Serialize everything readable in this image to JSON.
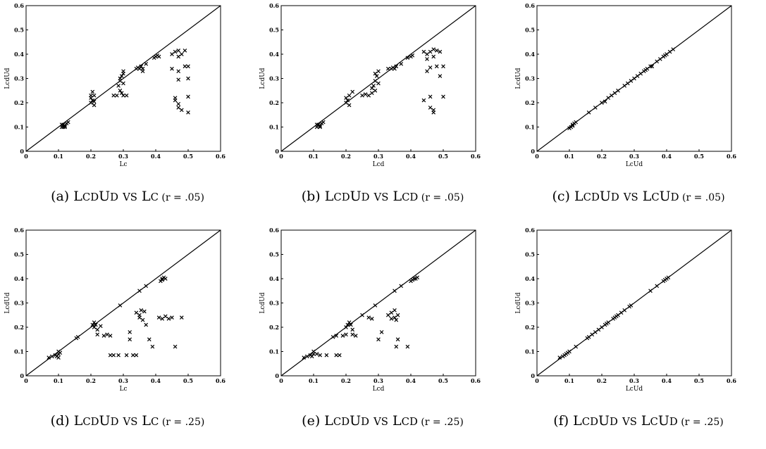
{
  "chart_data": [
    {
      "type": "scatter",
      "caption": {
        "label": "(a)",
        "text": "LcdUd vs Lc",
        "r": "(r = .05)"
      },
      "xlabel": "Lc",
      "ylabel": "LcdUd",
      "xlim": [
        0,
        0.6
      ],
      "ylim": [
        0,
        0.6
      ],
      "ticks": [
        "0",
        "0.1",
        "0.2",
        "0.3",
        "0.4",
        "0.5",
        "0.6"
      ],
      "diagonal": true,
      "points": [
        [
          0.11,
          0.1
        ],
        [
          0.115,
          0.11
        ],
        [
          0.12,
          0.105
        ],
        [
          0.125,
          0.115
        ],
        [
          0.11,
          0.11
        ],
        [
          0.12,
          0.1
        ],
        [
          0.13,
          0.12
        ],
        [
          0.115,
          0.1
        ],
        [
          0.2,
          0.2
        ],
        [
          0.205,
          0.21
        ],
        [
          0.21,
          0.19
        ],
        [
          0.2,
          0.22
        ],
        [
          0.21,
          0.23
        ],
        [
          0.205,
          0.245
        ],
        [
          0.2,
          0.23
        ],
        [
          0.21,
          0.205
        ],
        [
          0.27,
          0.23
        ],
        [
          0.28,
          0.23
        ],
        [
          0.285,
          0.27
        ],
        [
          0.29,
          0.25
        ],
        [
          0.29,
          0.29
        ],
        [
          0.295,
          0.31
        ],
        [
          0.3,
          0.33
        ],
        [
          0.3,
          0.28
        ],
        [
          0.295,
          0.24
        ],
        [
          0.3,
          0.23
        ],
        [
          0.31,
          0.23
        ],
        [
          0.29,
          0.3
        ],
        [
          0.3,
          0.32
        ],
        [
          0.34,
          0.34
        ],
        [
          0.345,
          0.345
        ],
        [
          0.35,
          0.34
        ],
        [
          0.355,
          0.35
        ],
        [
          0.36,
          0.33
        ],
        [
          0.37,
          0.36
        ],
        [
          0.36,
          0.34
        ],
        [
          0.4,
          0.39
        ],
        [
          0.395,
          0.385
        ],
        [
          0.405,
          0.395
        ],
        [
          0.41,
          0.39
        ],
        [
          0.45,
          0.4
        ],
        [
          0.46,
          0.41
        ],
        [
          0.47,
          0.415
        ],
        [
          0.48,
          0.4
        ],
        [
          0.49,
          0.415
        ],
        [
          0.47,
          0.39
        ],
        [
          0.45,
          0.34
        ],
        [
          0.47,
          0.33
        ],
        [
          0.5,
          0.35
        ],
        [
          0.49,
          0.35
        ],
        [
          0.5,
          0.3
        ],
        [
          0.47,
          0.295
        ],
        [
          0.46,
          0.22
        ],
        [
          0.46,
          0.21
        ],
        [
          0.5,
          0.225
        ],
        [
          0.47,
          0.18
        ],
        [
          0.48,
          0.17
        ],
        [
          0.5,
          0.16
        ],
        [
          0.47,
          0.195
        ]
      ]
    },
    {
      "type": "scatter",
      "caption": {
        "label": "(b)",
        "text": "LcdUd vs Lcd",
        "r": "(r = .05)"
      },
      "xlabel": "Lcd",
      "ylabel": "LcdUd",
      "xlim": [
        0,
        0.6
      ],
      "ylim": [
        0,
        0.6
      ],
      "ticks": [
        "0",
        "0.1",
        "0.2",
        "0.3",
        "0.4",
        "0.5",
        "0.6"
      ],
      "diagonal": true,
      "points": [
        [
          0.11,
          0.1
        ],
        [
          0.115,
          0.11
        ],
        [
          0.12,
          0.105
        ],
        [
          0.125,
          0.115
        ],
        [
          0.11,
          0.11
        ],
        [
          0.12,
          0.1
        ],
        [
          0.13,
          0.12
        ],
        [
          0.2,
          0.2
        ],
        [
          0.205,
          0.21
        ],
        [
          0.21,
          0.19
        ],
        [
          0.2,
          0.22
        ],
        [
          0.21,
          0.23
        ],
        [
          0.22,
          0.245
        ],
        [
          0.25,
          0.23
        ],
        [
          0.26,
          0.235
        ],
        [
          0.27,
          0.23
        ],
        [
          0.28,
          0.24
        ],
        [
          0.285,
          0.27
        ],
        [
          0.29,
          0.25
        ],
        [
          0.29,
          0.29
        ],
        [
          0.295,
          0.31
        ],
        [
          0.3,
          0.33
        ],
        [
          0.3,
          0.28
        ],
        [
          0.28,
          0.26
        ],
        [
          0.29,
          0.32
        ],
        [
          0.33,
          0.34
        ],
        [
          0.34,
          0.34
        ],
        [
          0.345,
          0.345
        ],
        [
          0.35,
          0.34
        ],
        [
          0.355,
          0.35
        ],
        [
          0.37,
          0.36
        ],
        [
          0.39,
          0.385
        ],
        [
          0.4,
          0.39
        ],
        [
          0.405,
          0.395
        ],
        [
          0.44,
          0.41
        ],
        [
          0.45,
          0.4
        ],
        [
          0.46,
          0.41
        ],
        [
          0.47,
          0.42
        ],
        [
          0.48,
          0.415
        ],
        [
          0.49,
          0.41
        ],
        [
          0.45,
          0.38
        ],
        [
          0.47,
          0.39
        ],
        [
          0.46,
          0.345
        ],
        [
          0.48,
          0.35
        ],
        [
          0.5,
          0.35
        ],
        [
          0.49,
          0.31
        ],
        [
          0.45,
          0.33
        ],
        [
          0.44,
          0.21
        ],
        [
          0.46,
          0.225
        ],
        [
          0.5,
          0.225
        ],
        [
          0.47,
          0.17
        ],
        [
          0.46,
          0.18
        ],
        [
          0.47,
          0.16
        ]
      ]
    },
    {
      "type": "scatter",
      "caption": {
        "label": "(c)",
        "text": "LcdUd vs LcUd",
        "r": "(r = .05)"
      },
      "xlabel": "LcUd",
      "ylabel": "LcdUd",
      "xlim": [
        0,
        0.6
      ],
      "ylim": [
        0,
        0.6
      ],
      "ticks": [
        "0",
        "0.1",
        "0.2",
        "0.3",
        "0.4",
        "0.5",
        "0.6"
      ],
      "diagonal": true,
      "points": [
        [
          0.1,
          0.095
        ],
        [
          0.105,
          0.1
        ],
        [
          0.11,
          0.11
        ],
        [
          0.115,
          0.115
        ],
        [
          0.12,
          0.12
        ],
        [
          0.11,
          0.105
        ],
        [
          0.16,
          0.16
        ],
        [
          0.18,
          0.18
        ],
        [
          0.2,
          0.2
        ],
        [
          0.21,
          0.205
        ],
        [
          0.22,
          0.22
        ],
        [
          0.23,
          0.23
        ],
        [
          0.24,
          0.24
        ],
        [
          0.25,
          0.25
        ],
        [
          0.27,
          0.27
        ],
        [
          0.28,
          0.28
        ],
        [
          0.29,
          0.29
        ],
        [
          0.3,
          0.3
        ],
        [
          0.31,
          0.31
        ],
        [
          0.32,
          0.32
        ],
        [
          0.33,
          0.33
        ],
        [
          0.335,
          0.335
        ],
        [
          0.34,
          0.34
        ],
        [
          0.35,
          0.35
        ],
        [
          0.355,
          0.35
        ],
        [
          0.37,
          0.37
        ],
        [
          0.38,
          0.38
        ],
        [
          0.39,
          0.39
        ],
        [
          0.395,
          0.395
        ],
        [
          0.4,
          0.4
        ],
        [
          0.41,
          0.41
        ],
        [
          0.42,
          0.42
        ]
      ]
    },
    {
      "type": "scatter",
      "caption": {
        "label": "(d)",
        "text": "LcdUd vs Lc",
        "r": "(r = .25)"
      },
      "xlabel": "Lc",
      "ylabel": "LcdUd",
      "xlim": [
        0,
        0.6
      ],
      "ylim": [
        0,
        0.6
      ],
      "ticks": [
        "0",
        "0.1",
        "0.2",
        "0.3",
        "0.4",
        "0.5",
        "0.6"
      ],
      "diagonal": true,
      "points": [
        [
          0.07,
          0.075
        ],
        [
          0.08,
          0.08
        ],
        [
          0.09,
          0.085
        ],
        [
          0.1,
          0.09
        ],
        [
          0.1,
          0.1
        ],
        [
          0.105,
          0.095
        ],
        [
          0.095,
          0.08
        ],
        [
          0.1,
          0.075
        ],
        [
          0.16,
          0.16
        ],
        [
          0.155,
          0.155
        ],
        [
          0.21,
          0.2
        ],
        [
          0.205,
          0.21
        ],
        [
          0.21,
          0.22
        ],
        [
          0.215,
          0.21
        ],
        [
          0.22,
          0.19
        ],
        [
          0.23,
          0.205
        ],
        [
          0.22,
          0.17
        ],
        [
          0.24,
          0.165
        ],
        [
          0.25,
          0.17
        ],
        [
          0.26,
          0.165
        ],
        [
          0.26,
          0.085
        ],
        [
          0.27,
          0.085
        ],
        [
          0.285,
          0.085
        ],
        [
          0.31,
          0.085
        ],
        [
          0.33,
          0.085
        ],
        [
          0.34,
          0.085
        ],
        [
          0.29,
          0.29
        ],
        [
          0.32,
          0.18
        ],
        [
          0.32,
          0.15
        ],
        [
          0.34,
          0.26
        ],
        [
          0.35,
          0.25
        ],
        [
          0.355,
          0.27
        ],
        [
          0.35,
          0.24
        ],
        [
          0.365,
          0.265
        ],
        [
          0.36,
          0.23
        ],
        [
          0.37,
          0.21
        ],
        [
          0.35,
          0.35
        ],
        [
          0.37,
          0.37
        ],
        [
          0.38,
          0.15
        ],
        [
          0.39,
          0.12
        ],
        [
          0.41,
          0.24
        ],
        [
          0.42,
          0.235
        ],
        [
          0.43,
          0.245
        ],
        [
          0.44,
          0.235
        ],
        [
          0.45,
          0.24
        ],
        [
          0.42,
          0.4
        ],
        [
          0.415,
          0.39
        ],
        [
          0.425,
          0.405
        ],
        [
          0.42,
          0.395
        ],
        [
          0.43,
          0.4
        ],
        [
          0.46,
          0.12
        ],
        [
          0.48,
          0.24
        ]
      ]
    },
    {
      "type": "scatter",
      "caption": {
        "label": "(e)",
        "text": "LcdUd vs Lcd",
        "r": "(r = .25)"
      },
      "xlabel": "Lcd",
      "ylabel": "LcdUd",
      "xlim": [
        0,
        0.6
      ],
      "ylim": [
        0,
        0.6
      ],
      "ticks": [
        "0",
        "0.1",
        "0.2",
        "0.3",
        "0.4",
        "0.5",
        "0.6"
      ],
      "diagonal": true,
      "points": [
        [
          0.07,
          0.075
        ],
        [
          0.08,
          0.08
        ],
        [
          0.09,
          0.085
        ],
        [
          0.1,
          0.09
        ],
        [
          0.1,
          0.1
        ],
        [
          0.11,
          0.09
        ],
        [
          0.12,
          0.085
        ],
        [
          0.095,
          0.08
        ],
        [
          0.14,
          0.085
        ],
        [
          0.17,
          0.085
        ],
        [
          0.18,
          0.085
        ],
        [
          0.16,
          0.16
        ],
        [
          0.17,
          0.165
        ],
        [
          0.2,
          0.2
        ],
        [
          0.205,
          0.21
        ],
        [
          0.21,
          0.22
        ],
        [
          0.215,
          0.21
        ],
        [
          0.22,
          0.19
        ],
        [
          0.2,
          0.17
        ],
        [
          0.22,
          0.17
        ],
        [
          0.23,
          0.165
        ],
        [
          0.19,
          0.165
        ],
        [
          0.25,
          0.25
        ],
        [
          0.27,
          0.24
        ],
        [
          0.28,
          0.235
        ],
        [
          0.29,
          0.29
        ],
        [
          0.3,
          0.15
        ],
        [
          0.31,
          0.18
        ],
        [
          0.33,
          0.25
        ],
        [
          0.34,
          0.26
        ],
        [
          0.35,
          0.27
        ],
        [
          0.35,
          0.24
        ],
        [
          0.355,
          0.23
        ],
        [
          0.36,
          0.25
        ],
        [
          0.34,
          0.235
        ],
        [
          0.35,
          0.35
        ],
        [
          0.37,
          0.37
        ],
        [
          0.36,
          0.15
        ],
        [
          0.355,
          0.12
        ],
        [
          0.39,
          0.12
        ],
        [
          0.4,
          0.39
        ],
        [
          0.41,
          0.4
        ],
        [
          0.405,
          0.395
        ],
        [
          0.415,
          0.4
        ],
        [
          0.42,
          0.405
        ]
      ]
    },
    {
      "type": "scatter",
      "caption": {
        "label": "(f)",
        "text": "LcdUd vs LcUd",
        "r": "(r = .25)"
      },
      "xlabel": "LcUd",
      "ylabel": "LcdUd",
      "xlim": [
        0,
        0.6
      ],
      "ylim": [
        0,
        0.6
      ],
      "ticks": [
        "0",
        "0.1",
        "0.2",
        "0.3",
        "0.4",
        "0.5",
        "0.6"
      ],
      "diagonal": true,
      "points": [
        [
          0.07,
          0.075
        ],
        [
          0.08,
          0.08
        ],
        [
          0.085,
          0.085
        ],
        [
          0.09,
          0.09
        ],
        [
          0.095,
          0.095
        ],
        [
          0.1,
          0.1
        ],
        [
          0.12,
          0.12
        ],
        [
          0.155,
          0.155
        ],
        [
          0.16,
          0.16
        ],
        [
          0.17,
          0.17
        ],
        [
          0.18,
          0.18
        ],
        [
          0.19,
          0.19
        ],
        [
          0.2,
          0.2
        ],
        [
          0.21,
          0.21
        ],
        [
          0.215,
          0.215
        ],
        [
          0.22,
          0.22
        ],
        [
          0.235,
          0.235
        ],
        [
          0.24,
          0.24
        ],
        [
          0.245,
          0.245
        ],
        [
          0.25,
          0.25
        ],
        [
          0.26,
          0.26
        ],
        [
          0.27,
          0.27
        ],
        [
          0.285,
          0.285
        ],
        [
          0.29,
          0.29
        ],
        [
          0.35,
          0.35
        ],
        [
          0.37,
          0.37
        ],
        [
          0.39,
          0.39
        ],
        [
          0.395,
          0.395
        ],
        [
          0.4,
          0.4
        ],
        [
          0.405,
          0.405
        ]
      ]
    }
  ]
}
